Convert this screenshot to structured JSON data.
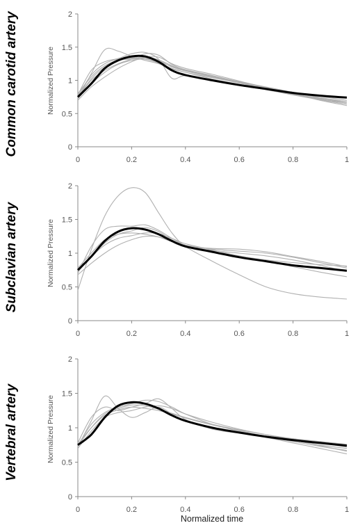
{
  "figure": {
    "xlabel": "Normalized time",
    "line_colors": {
      "individual": "#b0b0b0",
      "mean": "#000000",
      "axis": "#888888"
    }
  },
  "chart_data": [
    {
      "type": "line",
      "row_label": "Common carotid artery",
      "ylabel": "Normalized Pressure",
      "xlim": [
        0,
        1
      ],
      "ylim": [
        0,
        2
      ],
      "xticks": [
        "0",
        "0.2",
        "0.4",
        "0.6",
        "0.8",
        "1"
      ],
      "yticks": [
        "0",
        "0.5",
        "1",
        "1.5",
        "2"
      ],
      "x": [
        0,
        0.05,
        0.1,
        0.15,
        0.2,
        0.25,
        0.3,
        0.35,
        0.4,
        0.5,
        0.6,
        0.7,
        0.8,
        0.9,
        1.0
      ],
      "mean": [
        0.75,
        0.95,
        1.18,
        1.3,
        1.36,
        1.36,
        1.28,
        1.15,
        1.08,
        1.0,
        0.93,
        0.87,
        0.81,
        0.77,
        0.74
      ],
      "series": [
        {
          "values": [
            0.72,
            1.1,
            1.46,
            1.44,
            1.36,
            1.3,
            1.25,
            1.17,
            1.12,
            1.02,
            0.94,
            0.86,
            0.78,
            0.71,
            0.66
          ]
        },
        {
          "values": [
            0.78,
            1.15,
            1.28,
            1.33,
            1.4,
            1.42,
            1.32,
            1.03,
            1.07,
            1.0,
            0.92,
            0.86,
            0.79,
            0.73,
            0.68
          ]
        },
        {
          "values": [
            0.74,
            1.0,
            1.15,
            1.25,
            1.32,
            1.4,
            1.38,
            1.24,
            1.16,
            1.07,
            0.96,
            0.87,
            0.79,
            0.71,
            0.64
          ]
        },
        {
          "values": [
            0.7,
            0.9,
            1.05,
            1.18,
            1.28,
            1.35,
            1.35,
            1.25,
            1.18,
            1.09,
            0.99,
            0.89,
            0.8,
            0.7,
            0.62
          ]
        },
        {
          "values": [
            0.8,
            1.05,
            1.22,
            1.3,
            1.32,
            1.33,
            1.3,
            1.2,
            1.14,
            1.05,
            0.97,
            0.89,
            0.82,
            0.76,
            0.7
          ]
        },
        {
          "values": [
            0.76,
            1.08,
            1.25,
            1.32,
            1.34,
            1.32,
            1.26,
            1.18,
            1.12,
            1.04,
            0.96,
            0.88,
            0.81,
            0.74,
            0.68
          ]
        },
        {
          "values": [
            0.74,
            1.02,
            1.2,
            1.3,
            1.33,
            1.35,
            1.31,
            1.22,
            1.15,
            1.06,
            0.97,
            0.88,
            0.8,
            0.72,
            0.66
          ]
        },
        {
          "values": [
            0.72,
            0.95,
            1.12,
            1.24,
            1.3,
            1.32,
            1.28,
            1.21,
            1.15,
            1.07,
            0.98,
            0.9,
            0.82,
            0.74,
            0.66
          ]
        }
      ]
    },
    {
      "type": "line",
      "row_label": "Subclavian artery",
      "ylabel": "Normalized Pressure",
      "xlim": [
        0,
        1
      ],
      "ylim": [
        0,
        2
      ],
      "xticks": [
        "0",
        "0.2",
        "0.4",
        "0.6",
        "0.8",
        "1"
      ],
      "yticks": [
        "0",
        "0.5",
        "1",
        "1.5",
        "2"
      ],
      "x": [
        0,
        0.05,
        0.1,
        0.15,
        0.2,
        0.25,
        0.3,
        0.35,
        0.4,
        0.5,
        0.6,
        0.7,
        0.8,
        0.9,
        1.0
      ],
      "mean": [
        0.75,
        0.95,
        1.18,
        1.32,
        1.37,
        1.35,
        1.28,
        1.18,
        1.1,
        1.02,
        0.94,
        0.88,
        0.82,
        0.78,
        0.74
      ],
      "series": [
        {
          "values": [
            0.45,
            1.05,
            1.55,
            1.85,
            1.97,
            1.9,
            1.6,
            1.3,
            1.1,
            0.88,
            0.68,
            0.5,
            0.4,
            0.35,
            0.32
          ]
        },
        {
          "values": [
            0.7,
            1.1,
            1.35,
            1.4,
            1.4,
            1.42,
            1.34,
            1.22,
            1.12,
            1.02,
            0.95,
            0.88,
            0.8,
            0.72,
            0.65
          ]
        },
        {
          "values": [
            0.72,
            0.95,
            1.15,
            1.28,
            1.33,
            1.38,
            1.32,
            1.2,
            1.12,
            1.04,
            1.0,
            0.96,
            0.9,
            0.82,
            0.73
          ]
        },
        {
          "values": [
            0.68,
            0.85,
            1.0,
            1.12,
            1.2,
            1.25,
            1.24,
            1.18,
            1.12,
            1.06,
            1.03,
            1.0,
            0.94,
            0.86,
            0.78
          ]
        },
        {
          "values": [
            0.78,
            1.0,
            1.2,
            1.28,
            1.3,
            1.28,
            1.24,
            1.17,
            1.11,
            1.07,
            1.06,
            1.02,
            0.95,
            0.88,
            0.8
          ]
        },
        {
          "values": [
            0.74,
            0.95,
            1.12,
            1.22,
            1.26,
            1.3,
            1.29,
            1.22,
            1.14,
            1.05,
            0.96,
            0.9,
            0.86,
            0.83,
            0.81
          ]
        }
      ]
    },
    {
      "type": "line",
      "row_label": "Vertebral artery",
      "ylabel": "Normalized Pressure",
      "xlim": [
        0,
        1
      ],
      "ylim": [
        0,
        2
      ],
      "xticks": [
        "0",
        "0.2",
        "0.4",
        "0.6",
        "0.8",
        "1"
      ],
      "yticks": [
        "0",
        "0.5",
        "1",
        "1.5",
        "2"
      ],
      "x": [
        0,
        0.05,
        0.1,
        0.15,
        0.2,
        0.25,
        0.3,
        0.35,
        0.4,
        0.5,
        0.6,
        0.7,
        0.8,
        0.9,
        1.0
      ],
      "mean": [
        0.75,
        0.9,
        1.15,
        1.32,
        1.37,
        1.35,
        1.28,
        1.18,
        1.1,
        1.0,
        0.93,
        0.87,
        0.82,
        0.78,
        0.74
      ],
      "series": [
        {
          "values": [
            0.72,
            1.1,
            1.46,
            1.28,
            1.15,
            1.22,
            1.3,
            1.2,
            1.1,
            1.0,
            0.93,
            0.86,
            0.78,
            0.7,
            0.62
          ]
        },
        {
          "values": [
            0.78,
            1.15,
            1.3,
            1.25,
            1.3,
            1.35,
            1.42,
            1.28,
            1.12,
            0.98,
            0.92,
            0.88,
            0.82,
            0.74,
            0.66
          ]
        },
        {
          "values": [
            0.74,
            1.05,
            1.22,
            1.3,
            1.35,
            1.4,
            1.38,
            1.3,
            1.2,
            1.05,
            0.95,
            0.87,
            0.8,
            0.73,
            0.67
          ]
        },
        {
          "values": [
            0.7,
            0.95,
            1.15,
            1.22,
            1.25,
            1.3,
            1.32,
            1.28,
            1.2,
            1.08,
            0.98,
            0.9,
            0.82,
            0.75,
            0.7
          ]
        },
        {
          "values": [
            0.76,
            1.0,
            1.18,
            1.26,
            1.3,
            1.28,
            1.25,
            1.2,
            1.14,
            1.04,
            0.96,
            0.88,
            0.84,
            0.8,
            0.76
          ]
        },
        {
          "values": [
            0.73,
            1.0,
            1.2,
            1.28,
            1.33,
            1.32,
            1.27,
            1.21,
            1.15,
            1.05,
            0.97,
            0.9,
            0.84,
            0.78,
            0.72
          ]
        }
      ]
    }
  ]
}
